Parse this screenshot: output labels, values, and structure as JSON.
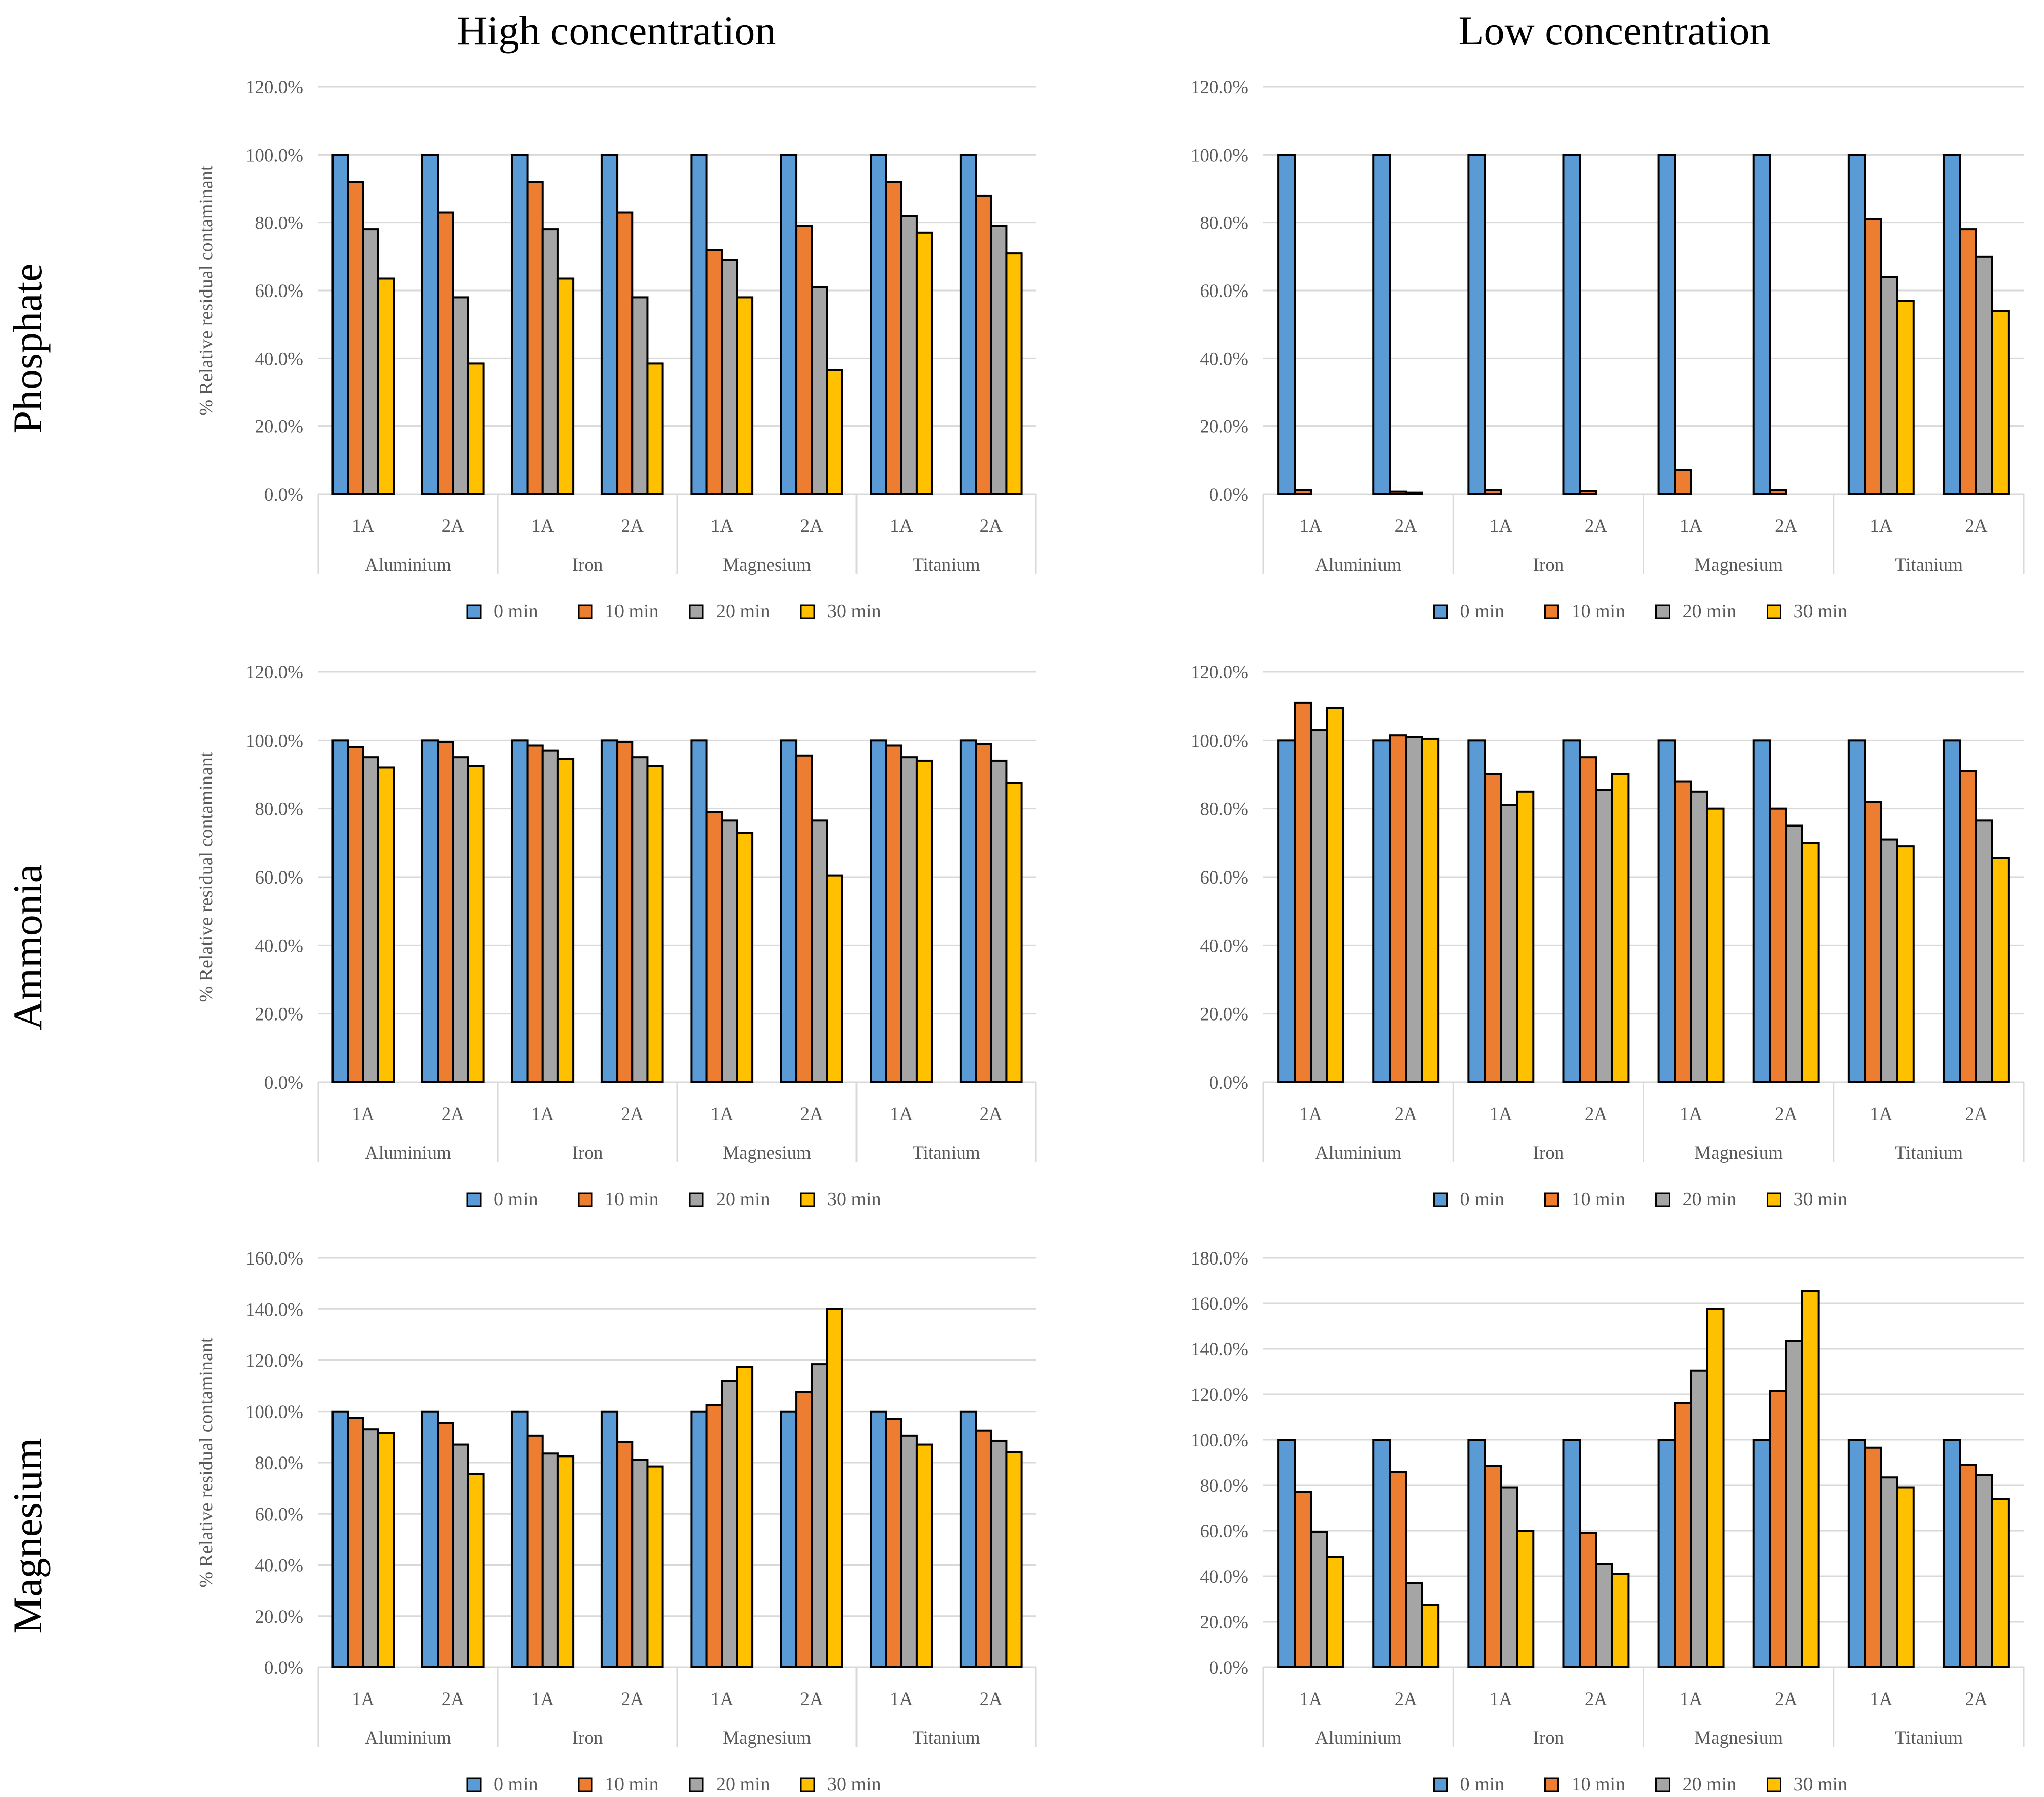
{
  "column_titles": [
    "High concentration",
    "Low concentration"
  ],
  "row_titles": [
    "Phosphate",
    "Ammonia",
    "Magnesium"
  ],
  "colors": {
    "0 min": "#5b9bd5",
    "10 min": "#ed7d31",
    "20 min": "#a5a5a5",
    "30 min": "#ffc000",
    "grid": "#d9d9d9",
    "text": "#595959"
  },
  "chart_data": [
    {
      "id": "phosphate-high",
      "type": "bar",
      "row": 0,
      "col": 0,
      "ylabel": "% Relative residual contaminant",
      "ylim": [
        0,
        120
      ],
      "ystep": 20,
      "tick_suffix": "%",
      "groups": [
        "Aluminium",
        "Iron",
        "Magnesium",
        "Titanium"
      ],
      "subcategories": [
        "1A",
        "2A"
      ],
      "legend": [
        "0 min",
        "10 min",
        "20 min",
        "30 min"
      ],
      "series": [
        {
          "name": "0 min",
          "values": [
            100,
            100,
            100,
            100,
            100,
            100,
            100,
            100
          ]
        },
        {
          "name": "10 min",
          "values": [
            92,
            83,
            92,
            83,
            72,
            79,
            92,
            88
          ]
        },
        {
          "name": "20 min",
          "values": [
            78,
            58,
            78,
            58,
            69,
            61,
            82,
            79
          ]
        },
        {
          "name": "30 min",
          "values": [
            63.5,
            38.5,
            63.5,
            38.5,
            58,
            36.5,
            77,
            71
          ]
        }
      ]
    },
    {
      "id": "phosphate-low",
      "type": "bar",
      "row": 0,
      "col": 1,
      "ylabel": "",
      "ylim": [
        0,
        120
      ],
      "ystep": 20,
      "tick_suffix": "%",
      "groups": [
        "Aluminium",
        "Iron",
        "Magnesium",
        "Titanium"
      ],
      "subcategories": [
        "1A",
        "2A"
      ],
      "legend": [
        "0 min",
        "10 min",
        "20 min",
        "30 min"
      ],
      "series": [
        {
          "name": "0 min",
          "values": [
            100,
            100,
            100,
            100,
            100,
            100,
            100,
            100
          ]
        },
        {
          "name": "10 min",
          "values": [
            1.2,
            0.8,
            1.2,
            1.0,
            7,
            1.2,
            81,
            78
          ]
        },
        {
          "name": "20 min",
          "values": [
            0,
            0.5,
            0,
            0,
            0,
            0,
            64,
            70
          ]
        },
        {
          "name": "30 min",
          "values": [
            0,
            0,
            0,
            0,
            0,
            0,
            57,
            54
          ]
        }
      ]
    },
    {
      "id": "ammonia-high",
      "type": "bar",
      "row": 1,
      "col": 0,
      "ylabel": "% Relative residual contaminant",
      "ylim": [
        0,
        120
      ],
      "ystep": 20,
      "tick_suffix": "%",
      "groups": [
        "Aluminium",
        "Iron",
        "Magnesium",
        "Titanium"
      ],
      "subcategories": [
        "1A",
        "2A"
      ],
      "legend": [
        "0 min",
        "10 min",
        "20 min",
        "30 min"
      ],
      "series": [
        {
          "name": "0 min",
          "values": [
            100,
            100,
            100,
            100,
            100,
            100,
            100,
            100
          ]
        },
        {
          "name": "10 min",
          "values": [
            98,
            99.5,
            98.5,
            99.5,
            79,
            95.5,
            98.5,
            99
          ]
        },
        {
          "name": "20 min",
          "values": [
            95,
            95,
            97,
            95,
            76.5,
            76.5,
            95,
            94
          ]
        },
        {
          "name": "30 min",
          "values": [
            92,
            92.5,
            94.5,
            92.5,
            73,
            60.5,
            94,
            87.5
          ]
        }
      ]
    },
    {
      "id": "ammonia-low",
      "type": "bar",
      "row": 1,
      "col": 1,
      "ylabel": "",
      "ylim": [
        0,
        120
      ],
      "ystep": 20,
      "tick_suffix": "%",
      "groups": [
        "Aluminium",
        "Iron",
        "Magnesium",
        "Titanium"
      ],
      "subcategories": [
        "1A",
        "2A"
      ],
      "legend": [
        "0 min",
        "10 min",
        "20 min",
        "30 min"
      ],
      "series": [
        {
          "name": "0 min",
          "values": [
            100,
            100,
            100,
            100,
            100,
            100,
            100,
            100
          ]
        },
        {
          "name": "10 min",
          "values": [
            111,
            101.5,
            90,
            95,
            88,
            80,
            82,
            91
          ]
        },
        {
          "name": "20 min",
          "values": [
            103,
            101,
            81,
            85.5,
            85,
            75,
            71,
            76.5
          ]
        },
        {
          "name": "30 min",
          "values": [
            109.5,
            100.5,
            85,
            90,
            80,
            70,
            69,
            65.5
          ]
        }
      ]
    },
    {
      "id": "magnesium-high",
      "type": "bar",
      "row": 2,
      "col": 0,
      "ylabel": "% Relative residual contaminant",
      "ylim": [
        0,
        160
      ],
      "ystep": 20,
      "tick_suffix": "%",
      "groups": [
        "Aluminium",
        "Iron",
        "Magnesium",
        "Titanium"
      ],
      "subcategories": [
        "1A",
        "2A"
      ],
      "legend": [
        "0 min",
        "10 min",
        "20 min",
        "30 min"
      ],
      "series": [
        {
          "name": "0 min",
          "values": [
            100,
            100,
            100,
            100,
            100,
            100,
            100,
            100
          ]
        },
        {
          "name": "10 min",
          "values": [
            97.5,
            95.5,
            90.5,
            88,
            102.5,
            107.5,
            97,
            92.5
          ]
        },
        {
          "name": "20 min",
          "values": [
            93,
            87,
            83.5,
            81,
            112,
            118.5,
            90.5,
            88.5
          ]
        },
        {
          "name": "30 min",
          "values": [
            91.5,
            75.5,
            82.5,
            78.5,
            117.5,
            140,
            87,
            84
          ]
        }
      ]
    },
    {
      "id": "magnesium-low",
      "type": "bar",
      "row": 2,
      "col": 1,
      "ylabel": "",
      "ylim": [
        0,
        180
      ],
      "ystep": 20,
      "tick_suffix": "%",
      "groups": [
        "Aluminium",
        "Iron",
        "Magnesium",
        "Titanium"
      ],
      "subcategories": [
        "1A",
        "2A"
      ],
      "legend": [
        "0 min",
        "10 min",
        "20 min",
        "30 min"
      ],
      "series": [
        {
          "name": "0 min",
          "values": [
            100,
            100,
            100,
            100,
            100,
            100,
            100,
            100
          ]
        },
        {
          "name": "10 min",
          "values": [
            77,
            86,
            88.5,
            59,
            116,
            121.5,
            96.5,
            89
          ]
        },
        {
          "name": "20 min",
          "values": [
            59.5,
            37,
            79,
            45.5,
            130.5,
            143.5,
            83.5,
            84.5
          ]
        },
        {
          "name": "30 min",
          "values": [
            48.5,
            27.5,
            60,
            41,
            157.5,
            165.5,
            79,
            74
          ]
        }
      ]
    }
  ]
}
